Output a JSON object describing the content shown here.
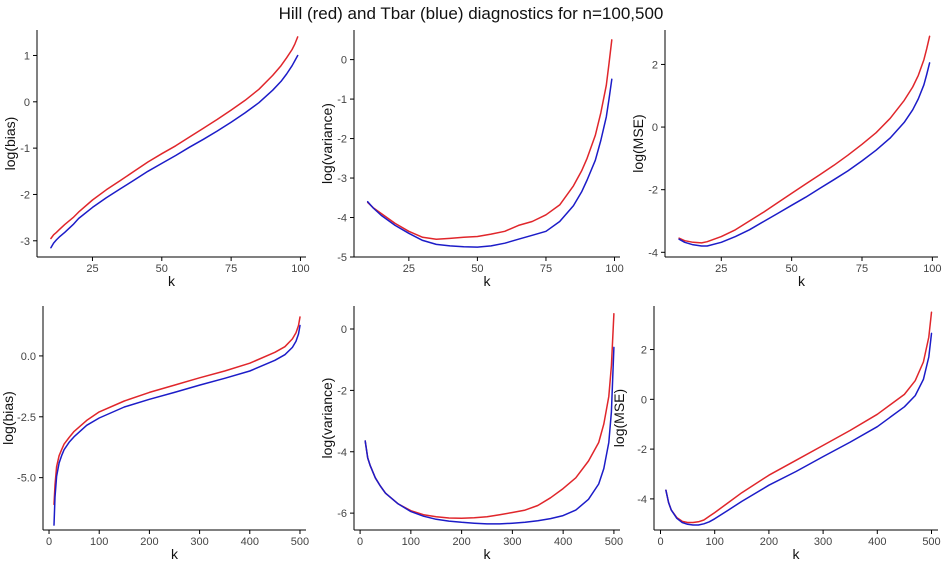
{
  "title": "Hill (red) and Tbar (blue) diagnostics for n=100,500",
  "colors": {
    "hill": "#e0262b",
    "tbar": "#1c1cc8",
    "axis": "#000000",
    "tick_text": "#444444",
    "label_text": "#111111"
  },
  "chart_data": [
    {
      "type": "line",
      "id": "p1",
      "xlabel": "k",
      "ylabel": "log(bias)",
      "xlim": [
        5,
        102
      ],
      "ylim": [
        -3.35,
        1.55
      ],
      "xticks": [
        25,
        50,
        75,
        100
      ],
      "xtick_labels": [
        "25",
        "50",
        "75",
        "100"
      ],
      "yticks": [
        -3,
        -2,
        -1,
        0,
        1
      ],
      "ytick_labels": [
        "-3",
        "-2",
        "-1",
        "0",
        "1"
      ],
      "series": [
        {
          "name": "Hill",
          "x": [
            10,
            11,
            12,
            13,
            15,
            18,
            20,
            25,
            30,
            35,
            40,
            45,
            50,
            55,
            60,
            65,
            70,
            75,
            80,
            85,
            90,
            93,
            95,
            97,
            98,
            99
          ],
          "y": [
            -2.95,
            -2.87,
            -2.82,
            -2.76,
            -2.65,
            -2.5,
            -2.38,
            -2.12,
            -1.9,
            -1.7,
            -1.5,
            -1.3,
            -1.12,
            -0.95,
            -0.76,
            -0.57,
            -0.38,
            -0.18,
            0.03,
            0.27,
            0.57,
            0.78,
            0.95,
            1.13,
            1.25,
            1.4
          ]
        },
        {
          "name": "Tbar",
          "x": [
            10,
            11,
            12,
            13,
            15,
            18,
            20,
            25,
            30,
            35,
            40,
            45,
            50,
            55,
            60,
            65,
            70,
            75,
            80,
            85,
            90,
            93,
            95,
            97,
            98,
            99
          ],
          "y": [
            -3.15,
            -3.05,
            -2.98,
            -2.92,
            -2.82,
            -2.65,
            -2.52,
            -2.28,
            -2.07,
            -1.88,
            -1.69,
            -1.5,
            -1.33,
            -1.16,
            -0.98,
            -0.81,
            -0.63,
            -0.44,
            -0.24,
            -0.02,
            0.25,
            0.44,
            0.6,
            0.78,
            0.89,
            1.0
          ]
        }
      ]
    },
    {
      "type": "line",
      "id": "p2",
      "xlabel": "k",
      "ylabel": "log(variance)",
      "xlim": [
        5,
        102
      ],
      "ylim": [
        -5.0,
        0.75
      ],
      "xticks": [
        25,
        50,
        75,
        100
      ],
      "xtick_labels": [
        "25",
        "50",
        "75",
        "100"
      ],
      "yticks": [
        0,
        -1,
        -2,
        -3,
        -4,
        -5
      ],
      "ytick_labels": [
        "0",
        "-1",
        "-2",
        "-3",
        "-4",
        "-5"
      ],
      "series": [
        {
          "name": "Hill",
          "x": [
            10,
            12,
            15,
            20,
            25,
            30,
            35,
            40,
            45,
            50,
            55,
            60,
            65,
            70,
            75,
            80,
            85,
            88,
            90,
            93,
            95,
            97,
            98,
            99
          ],
          "y": [
            -3.62,
            -3.75,
            -3.9,
            -4.15,
            -4.35,
            -4.5,
            -4.55,
            -4.53,
            -4.5,
            -4.48,
            -4.42,
            -4.35,
            -4.2,
            -4.1,
            -3.93,
            -3.68,
            -3.2,
            -2.82,
            -2.5,
            -1.92,
            -1.35,
            -0.65,
            -0.1,
            0.5
          ]
        },
        {
          "name": "Tbar",
          "x": [
            10,
            12,
            15,
            20,
            25,
            30,
            35,
            40,
            45,
            50,
            55,
            60,
            65,
            70,
            75,
            80,
            85,
            88,
            90,
            93,
            95,
            97,
            98,
            99
          ],
          "y": [
            -3.6,
            -3.76,
            -3.95,
            -4.2,
            -4.4,
            -4.58,
            -4.68,
            -4.72,
            -4.74,
            -4.75,
            -4.72,
            -4.65,
            -4.55,
            -4.45,
            -4.35,
            -4.1,
            -3.7,
            -3.35,
            -3.05,
            -2.55,
            -2.05,
            -1.45,
            -1.0,
            -0.5
          ]
        }
      ]
    },
    {
      "type": "line",
      "id": "p3",
      "xlabel": "k",
      "ylabel": "log(MSE)",
      "xlim": [
        5,
        102
      ],
      "ylim": [
        -4.15,
        3.1
      ],
      "xticks": [
        25,
        50,
        75,
        100
      ],
      "xtick_labels": [
        "25",
        "50",
        "75",
        "100"
      ],
      "yticks": [
        2,
        0,
        -2,
        -4
      ],
      "ytick_labels": [
        "2",
        "0",
        "-2",
        "-4"
      ],
      "series": [
        {
          "name": "Hill",
          "x": [
            10,
            12,
            15,
            18,
            20,
            25,
            30,
            35,
            40,
            45,
            50,
            55,
            60,
            65,
            70,
            75,
            80,
            85,
            90,
            93,
            95,
            97,
            98,
            99
          ],
          "y": [
            -3.55,
            -3.63,
            -3.68,
            -3.7,
            -3.66,
            -3.5,
            -3.28,
            -3.0,
            -2.72,
            -2.42,
            -2.12,
            -1.82,
            -1.52,
            -1.22,
            -0.9,
            -0.55,
            -0.18,
            0.28,
            0.85,
            1.28,
            1.65,
            2.15,
            2.5,
            2.9
          ]
        },
        {
          "name": "Tbar",
          "x": [
            10,
            12,
            15,
            18,
            20,
            25,
            30,
            35,
            40,
            45,
            50,
            55,
            60,
            65,
            70,
            75,
            80,
            85,
            90,
            93,
            95,
            97,
            98,
            99
          ],
          "y": [
            -3.58,
            -3.68,
            -3.76,
            -3.8,
            -3.8,
            -3.68,
            -3.5,
            -3.28,
            -3.02,
            -2.76,
            -2.5,
            -2.24,
            -1.96,
            -1.68,
            -1.4,
            -1.08,
            -0.74,
            -0.35,
            0.15,
            0.55,
            0.9,
            1.35,
            1.68,
            2.05
          ]
        }
      ]
    },
    {
      "type": "line",
      "id": "p4",
      "xlabel": "k",
      "ylabel": "log(bias)",
      "xlim": [
        -12,
        512
      ],
      "ylim": [
        -7.15,
        2.05
      ],
      "xticks": [
        0,
        100,
        200,
        300,
        400,
        500
      ],
      "xtick_labels": [
        "0",
        "100",
        "200",
        "300",
        "400",
        "500"
      ],
      "yticks": [
        0,
        -2.5,
        -5
      ],
      "ytick_labels": [
        "0.0",
        "-2.5",
        "-5.0"
      ],
      "series": [
        {
          "name": "Hill",
          "x": [
            10,
            12,
            15,
            20,
            25,
            30,
            40,
            50,
            75,
            100,
            150,
            200,
            250,
            300,
            350,
            400,
            450,
            470,
            485,
            492,
            497,
            500
          ],
          "y": [
            -6.1,
            -5.3,
            -4.55,
            -4.1,
            -3.85,
            -3.62,
            -3.35,
            -3.1,
            -2.65,
            -2.3,
            -1.85,
            -1.5,
            -1.2,
            -0.9,
            -0.62,
            -0.3,
            0.15,
            0.38,
            0.7,
            0.95,
            1.25,
            1.6
          ]
        },
        {
          "name": "Tbar",
          "x": [
            10,
            12,
            15,
            20,
            25,
            30,
            40,
            50,
            75,
            100,
            150,
            200,
            250,
            300,
            350,
            400,
            450,
            470,
            485,
            492,
            497,
            500
          ],
          "y": [
            -6.95,
            -5.8,
            -4.95,
            -4.4,
            -4.1,
            -3.85,
            -3.55,
            -3.32,
            -2.85,
            -2.55,
            -2.1,
            -1.78,
            -1.5,
            -1.2,
            -0.92,
            -0.62,
            -0.18,
            0.05,
            0.35,
            0.6,
            0.9,
            1.25
          ]
        }
      ]
    },
    {
      "type": "line",
      "id": "p5",
      "xlabel": "k",
      "ylabel": "log(variance)",
      "xlim": [
        -12,
        512
      ],
      "ylim": [
        -6.55,
        0.75
      ],
      "xticks": [
        0,
        100,
        200,
        300,
        400,
        500
      ],
      "xtick_labels": [
        "0",
        "100",
        "200",
        "300",
        "400",
        "500"
      ],
      "yticks": [
        0,
        -2,
        -4,
        -6
      ],
      "ytick_labels": [
        "0",
        "-2",
        "-4",
        "-6"
      ],
      "series": [
        {
          "name": "Hill",
          "x": [
            10,
            15,
            20,
            30,
            40,
            50,
            75,
            100,
            125,
            150,
            175,
            200,
            225,
            250,
            275,
            300,
            325,
            350,
            375,
            400,
            425,
            450,
            470,
            480,
            490,
            495,
            500
          ],
          "y": [
            -3.65,
            -4.2,
            -4.45,
            -4.85,
            -5.12,
            -5.35,
            -5.7,
            -5.92,
            -6.05,
            -6.12,
            -6.16,
            -6.17,
            -6.15,
            -6.12,
            -6.05,
            -5.98,
            -5.9,
            -5.75,
            -5.5,
            -5.2,
            -4.85,
            -4.3,
            -3.7,
            -3.1,
            -2.2,
            -1.2,
            0.5
          ]
        },
        {
          "name": "Tbar",
          "x": [
            10,
            15,
            20,
            30,
            40,
            50,
            75,
            100,
            125,
            150,
            175,
            200,
            225,
            250,
            275,
            300,
            325,
            350,
            375,
            400,
            425,
            450,
            470,
            480,
            490,
            495,
            500
          ],
          "y": [
            -3.65,
            -4.2,
            -4.45,
            -4.85,
            -5.12,
            -5.35,
            -5.7,
            -5.95,
            -6.1,
            -6.2,
            -6.26,
            -6.3,
            -6.33,
            -6.35,
            -6.35,
            -6.33,
            -6.3,
            -6.25,
            -6.18,
            -6.08,
            -5.9,
            -5.55,
            -5.05,
            -4.55,
            -3.7,
            -2.7,
            -0.6
          ]
        }
      ]
    },
    {
      "type": "line",
      "id": "p6",
      "xlabel": "k",
      "ylabel": "log(MSE)",
      "xlim": [
        -12,
        512
      ],
      "ylim": [
        -5.25,
        3.75
      ],
      "xticks": [
        0,
        100,
        200,
        300,
        400,
        500
      ],
      "xtick_labels": [
        "0",
        "100",
        "200",
        "300",
        "400",
        "500"
      ],
      "yticks": [
        2,
        0,
        -2,
        -4
      ],
      "ytick_labels": [
        "2",
        "0",
        "-2",
        "-4"
      ],
      "series": [
        {
          "name": "Hill",
          "x": [
            10,
            15,
            20,
            30,
            40,
            50,
            60,
            70,
            80,
            90,
            100,
            125,
            150,
            200,
            250,
            300,
            350,
            400,
            450,
            470,
            485,
            495,
            500
          ],
          "y": [
            -3.65,
            -4.15,
            -4.45,
            -4.75,
            -4.9,
            -4.95,
            -4.95,
            -4.92,
            -4.85,
            -4.7,
            -4.55,
            -4.15,
            -3.75,
            -3.05,
            -2.45,
            -1.85,
            -1.25,
            -0.6,
            0.2,
            0.75,
            1.5,
            2.5,
            3.5
          ]
        },
        {
          "name": "Tbar",
          "x": [
            10,
            15,
            20,
            30,
            40,
            50,
            60,
            70,
            80,
            90,
            100,
            125,
            150,
            200,
            250,
            300,
            350,
            400,
            450,
            470,
            485,
            495,
            500
          ],
          "y": [
            -3.65,
            -4.15,
            -4.45,
            -4.78,
            -4.95,
            -5.02,
            -5.05,
            -5.05,
            -5.0,
            -4.92,
            -4.8,
            -4.45,
            -4.1,
            -3.45,
            -2.9,
            -2.3,
            -1.72,
            -1.1,
            -0.3,
            0.15,
            0.8,
            1.7,
            2.65
          ]
        }
      ]
    }
  ]
}
